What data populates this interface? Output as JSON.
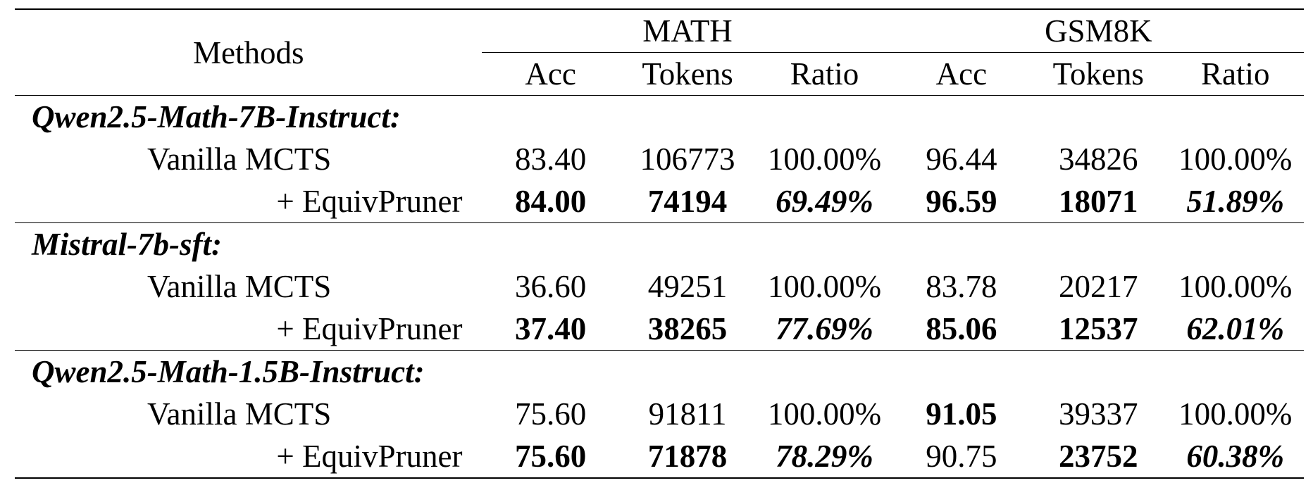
{
  "header": {
    "methods_label": "Methods",
    "groups": [
      "MATH",
      "GSM8K"
    ],
    "subcolumns": [
      "Acc",
      "Tokens",
      "Ratio",
      "Acc",
      "Tokens",
      "Ratio"
    ]
  },
  "sections": [
    {
      "title": "Qwen2.5-Math-7B-Instruct:",
      "rows": [
        {
          "method": "Vanilla MCTS",
          "cells": [
            "83.40",
            "106773",
            "100.00%",
            "96.44",
            "34826",
            "100.00%"
          ],
          "bold": [
            false,
            false,
            false,
            false,
            false,
            false
          ]
        },
        {
          "method": "+ EquivPruner",
          "cells": [
            "84.00",
            "74194",
            "69.49%",
            "96.59",
            "18071",
            "51.89%"
          ],
          "bold": [
            true,
            true,
            true,
            true,
            true,
            true
          ]
        }
      ]
    },
    {
      "title": "Mistral-7b-sft:",
      "rows": [
        {
          "method": "Vanilla MCTS",
          "cells": [
            "36.60",
            "49251",
            "100.00%",
            "83.78",
            "20217",
            "100.00%"
          ],
          "bold": [
            false,
            false,
            false,
            false,
            false,
            false
          ]
        },
        {
          "method": "+ EquivPruner",
          "cells": [
            "37.40",
            "38265",
            "77.69%",
            "85.06",
            "12537",
            "62.01%"
          ],
          "bold": [
            true,
            true,
            true,
            true,
            true,
            true
          ]
        }
      ]
    },
    {
      "title": "Qwen2.5-Math-1.5B-Instruct:",
      "rows": [
        {
          "method": "Vanilla MCTS",
          "cells": [
            "75.60",
            "91811",
            "100.00%",
            "91.05",
            "39337",
            "100.00%"
          ],
          "bold": [
            false,
            false,
            false,
            true,
            false,
            false
          ]
        },
        {
          "method": "+ EquivPruner",
          "cells": [
            "75.60",
            "71878",
            "78.29%",
            "90.75",
            "23752",
            "60.38%"
          ],
          "bold": [
            true,
            true,
            true,
            false,
            true,
            true
          ]
        }
      ]
    }
  ]
}
